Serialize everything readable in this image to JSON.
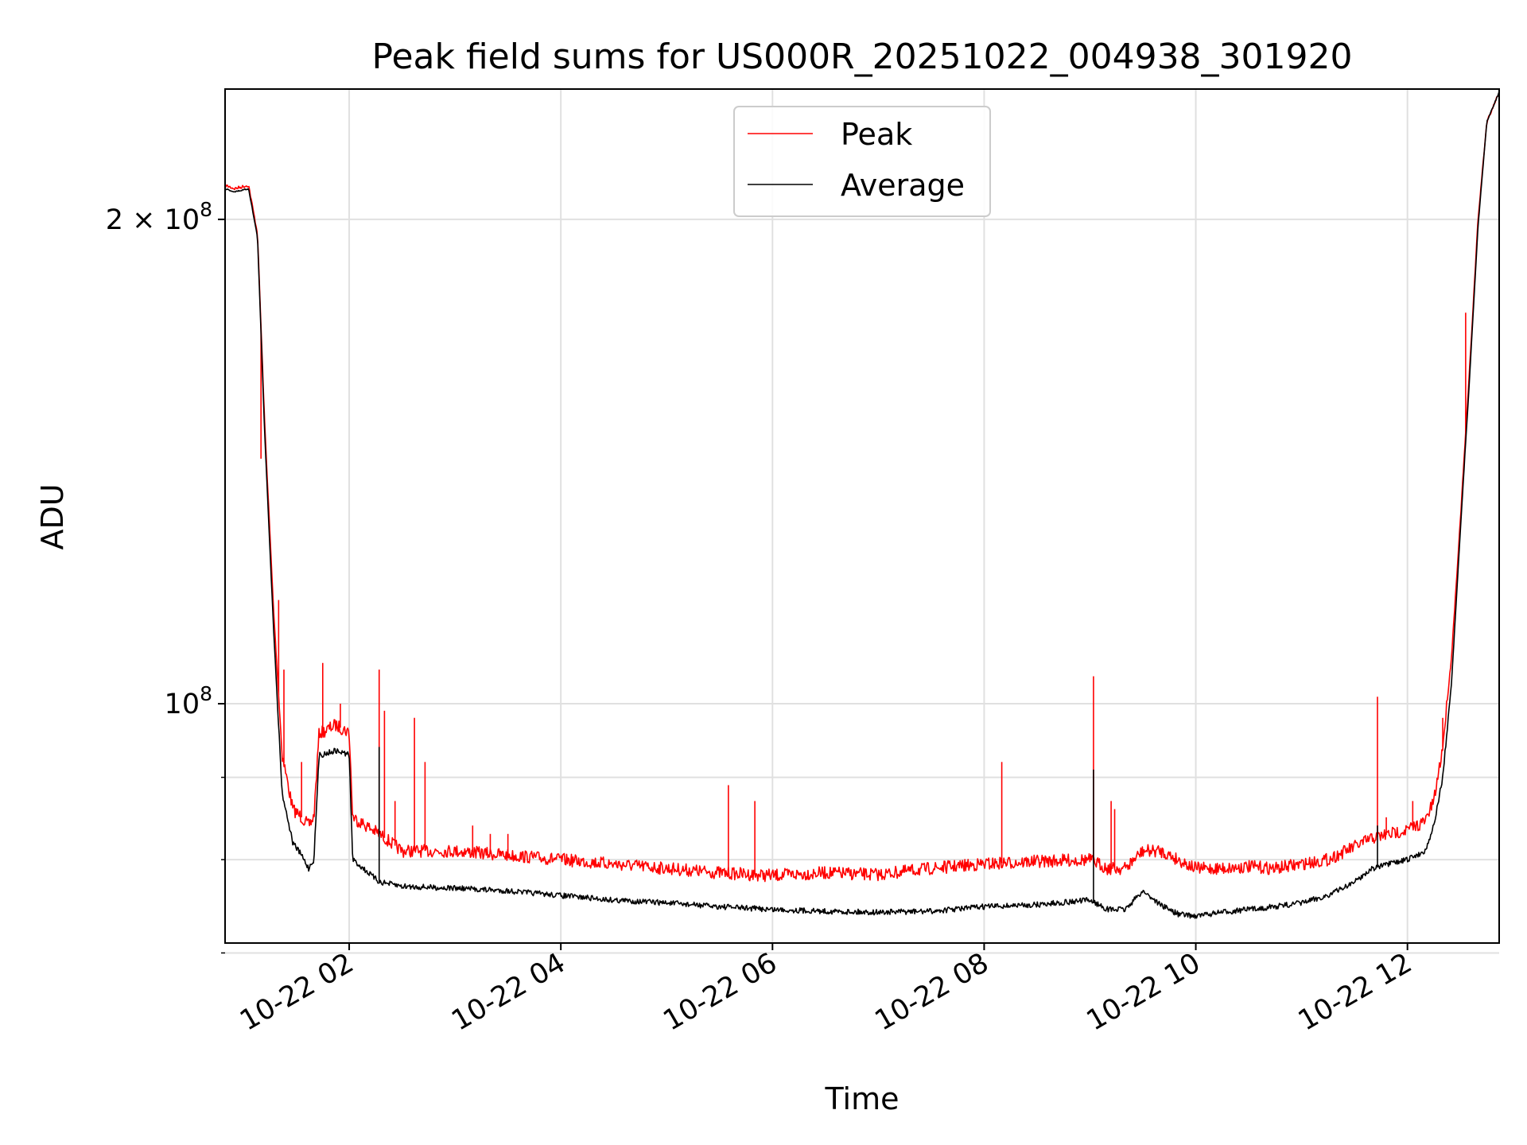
{
  "chart_data": {
    "type": "line",
    "title": "Peak field sums for US000R_20251022_004938_301920",
    "xlabel": "Time",
    "ylabel": "ADU",
    "yscale": "log",
    "grid": true,
    "legend_position": "upper center",
    "xlim": [
      "2025-10-22T00:49:38",
      "2025-10-22T12:52:00"
    ],
    "ylim": [
      71000000,
      241000000
    ],
    "x_ticks": [
      {
        "value": "2025-10-22T02:00",
        "label": "10-22 02"
      },
      {
        "value": "2025-10-22T04:00",
        "label": "10-22 04"
      },
      {
        "value": "2025-10-22T06:00",
        "label": "10-22 06"
      },
      {
        "value": "2025-10-22T08:00",
        "label": "10-22 08"
      },
      {
        "value": "2025-10-22T10:00",
        "label": "10-22 10"
      },
      {
        "value": "2025-10-22T12:00",
        "label": "10-22 12"
      }
    ],
    "y_major_ticks": [
      {
        "value": 100000000,
        "base": "10",
        "exp": "8",
        "coef": ""
      },
      {
        "value": 200000000,
        "base": "10",
        "exp": "8",
        "coef": "2 × "
      }
    ],
    "y_minor_ticks": [
      70000000,
      80000000,
      90000000
    ],
    "series": [
      {
        "name": "Peak",
        "color": "#ff0000",
        "x": [
          "2025-10-22T00:49:38",
          "2025-10-22T00:55",
          "2025-10-22T01:03",
          "2025-10-22T01:08",
          "2025-10-22T01:12",
          "2025-10-22T01:17",
          "2025-10-22T01:22",
          "2025-10-22T01:28",
          "2025-10-22T01:33",
          "2025-10-22T01:37",
          "2025-10-22T01:40",
          "2025-10-22T01:43",
          "2025-10-22T01:45",
          "2025-10-22T01:52",
          "2025-10-22T02:00",
          "2025-10-22T02:02",
          "2025-10-22T02:17",
          "2025-10-22T02:30",
          "2025-10-22T03:00",
          "2025-10-22T03:30",
          "2025-10-22T04:00",
          "2025-10-22T04:30",
          "2025-10-22T05:00",
          "2025-10-22T05:30",
          "2025-10-22T06:00",
          "2025-10-22T06:30",
          "2025-10-22T07:00",
          "2025-10-22T07:30",
          "2025-10-22T08:00",
          "2025-10-22T08:30",
          "2025-10-22T09:00",
          "2025-10-22T09:10",
          "2025-10-22T09:20",
          "2025-10-22T09:30",
          "2025-10-22T09:40",
          "2025-10-22T09:50",
          "2025-10-22T10:00",
          "2025-10-22T10:15",
          "2025-10-22T10:30",
          "2025-10-22T10:45",
          "2025-10-22T11:00",
          "2025-10-22T11:15",
          "2025-10-22T11:30",
          "2025-10-22T11:40",
          "2025-10-22T11:50",
          "2025-10-22T12:00",
          "2025-10-22T12:10",
          "2025-10-22T12:15",
          "2025-10-22T12:20",
          "2025-10-22T12:25",
          "2025-10-22T12:30",
          "2025-10-22T12:35",
          "2025-10-22T12:40",
          "2025-10-22T12:45",
          "2025-10-22T12:52"
        ],
        "y": [
          210000000,
          209000000,
          210000000,
          196000000,
          150000000,
          115000000,
          93000000,
          86000000,
          85000000,
          84000000,
          85000000,
          96000000,
          96000000,
          97000000,
          96000000,
          85000000,
          83000000,
          81000000,
          81000000,
          80500000,
          80000000,
          79500000,
          79000000,
          78500000,
          78200000,
          78500000,
          78300000,
          79000000,
          79500000,
          79800000,
          80000000,
          79000000,
          79000000,
          81000000,
          81000000,
          80000000,
          79000000,
          79000000,
          79200000,
          79000000,
          79500000,
          80000000,
          81500000,
          82500000,
          83000000,
          83500000,
          84500000,
          87000000,
          94000000,
          107000000,
          130000000,
          160000000,
          200000000,
          230000000,
          240000000
        ],
        "spikes": [
          {
            "x": "2025-10-22T01:10",
            "y": 142000000
          },
          {
            "x": "2025-10-22T01:20",
            "y": 116000000
          },
          {
            "x": "2025-10-22T01:23",
            "y": 105000000
          },
          {
            "x": "2025-10-22T01:33",
            "y": 92000000
          },
          {
            "x": "2025-10-22T01:45",
            "y": 106000000
          },
          {
            "x": "2025-10-22T01:55",
            "y": 100000000
          },
          {
            "x": "2025-10-22T02:17",
            "y": 105000000
          },
          {
            "x": "2025-10-22T02:20",
            "y": 99000000
          },
          {
            "x": "2025-10-22T02:26",
            "y": 87000000
          },
          {
            "x": "2025-10-22T02:37",
            "y": 98000000
          },
          {
            "x": "2025-10-22T02:43",
            "y": 92000000
          },
          {
            "x": "2025-10-22T03:10",
            "y": 84000000
          },
          {
            "x": "2025-10-22T03:20",
            "y": 83000000
          },
          {
            "x": "2025-10-22T03:30",
            "y": 83000000
          },
          {
            "x": "2025-10-22T05:35",
            "y": 89000000
          },
          {
            "x": "2025-10-22T05:50",
            "y": 87000000
          },
          {
            "x": "2025-10-22T08:10",
            "y": 92000000
          },
          {
            "x": "2025-10-22T09:02",
            "y": 104000000
          },
          {
            "x": "2025-10-22T09:12",
            "y": 87000000
          },
          {
            "x": "2025-10-22T09:14",
            "y": 86000000
          },
          {
            "x": "2025-10-22T11:43",
            "y": 101000000
          },
          {
            "x": "2025-10-22T11:48",
            "y": 85000000
          },
          {
            "x": "2025-10-22T12:03",
            "y": 87000000
          },
          {
            "x": "2025-10-22T12:20",
            "y": 98000000
          },
          {
            "x": "2025-10-22T12:33",
            "y": 175000000
          }
        ]
      },
      {
        "name": "Average",
        "color": "#000000",
        "x": [
          "2025-10-22T00:49:38",
          "2025-10-22T00:55",
          "2025-10-22T01:03",
          "2025-10-22T01:08",
          "2025-10-22T01:12",
          "2025-10-22T01:17",
          "2025-10-22T01:22",
          "2025-10-22T01:28",
          "2025-10-22T01:33",
          "2025-10-22T01:37",
          "2025-10-22T01:40",
          "2025-10-22T01:43",
          "2025-10-22T01:45",
          "2025-10-22T01:52",
          "2025-10-22T02:00",
          "2025-10-22T02:02",
          "2025-10-22T02:17",
          "2025-10-22T02:30",
          "2025-10-22T03:00",
          "2025-10-22T03:30",
          "2025-10-22T04:00",
          "2025-10-22T04:30",
          "2025-10-22T05:00",
          "2025-10-22T05:30",
          "2025-10-22T06:00",
          "2025-10-22T06:30",
          "2025-10-22T07:00",
          "2025-10-22T07:30",
          "2025-10-22T08:00",
          "2025-10-22T08:30",
          "2025-10-22T09:00",
          "2025-10-22T09:10",
          "2025-10-22T09:20",
          "2025-10-22T09:30",
          "2025-10-22T09:40",
          "2025-10-22T09:50",
          "2025-10-22T10:00",
          "2025-10-22T10:15",
          "2025-10-22T10:30",
          "2025-10-22T10:45",
          "2025-10-22T11:00",
          "2025-10-22T11:15",
          "2025-10-22T11:30",
          "2025-10-22T11:40",
          "2025-10-22T11:50",
          "2025-10-22T12:00",
          "2025-10-22T12:10",
          "2025-10-22T12:15",
          "2025-10-22T12:20",
          "2025-10-22T12:25",
          "2025-10-22T12:30",
          "2025-10-22T12:35",
          "2025-10-22T12:40",
          "2025-10-22T12:45",
          "2025-10-22T12:52"
        ],
        "y": [
          209000000,
          208000000,
          209000000,
          195000000,
          148000000,
          112000000,
          88000000,
          82000000,
          80500000,
          79000000,
          80000000,
          93000000,
          93000000,
          93500000,
          93000000,
          80000000,
          77500000,
          77000000,
          76800000,
          76500000,
          76000000,
          75500000,
          75200000,
          74800000,
          74500000,
          74300000,
          74200000,
          74300000,
          74800000,
          75000000,
          75500000,
          74500000,
          74500000,
          76500000,
          75000000,
          74000000,
          73800000,
          74200000,
          74500000,
          74800000,
          75200000,
          76000000,
          77500000,
          79000000,
          79500000,
          80000000,
          81000000,
          84000000,
          90000000,
          103000000,
          128000000,
          158000000,
          198000000,
          230000000,
          240000000
        ],
        "spikes": [
          {
            "x": "2025-10-22T02:17",
            "y": 94000000
          },
          {
            "x": "2025-10-22T09:02",
            "y": 91000000
          },
          {
            "x": "2025-10-22T11:43",
            "y": 84000000
          }
        ]
      }
    ]
  }
}
